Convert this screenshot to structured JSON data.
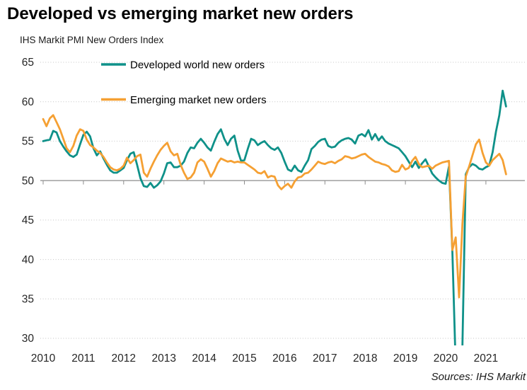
{
  "title": "Developed vs emerging market new orders",
  "subtitle": "IHS Markit PMI New Orders Index",
  "source": "Sources: IHS Markit",
  "colors": {
    "developed": "#0f9189",
    "emerging": "#f5a033",
    "gridline": "#c4c4c4",
    "axis": "#8c8c8c",
    "text": "#262626"
  },
  "chart_data": {
    "type": "line",
    "title": "Developed vs emerging market new orders",
    "ylabel": "IHS Markit PMI New Orders Index",
    "ylim": [
      30,
      65
    ],
    "yticks": [
      65,
      60,
      55,
      50,
      45,
      40,
      35,
      30
    ],
    "baseline_value": 50,
    "grid": "dotted horizontal lines, solid line at 50 with year tick marks",
    "legend_position": "top-left-inside",
    "xticks_years": [
      2010,
      2011,
      2012,
      2013,
      2014,
      2015,
      2016,
      2017,
      2018,
      2019,
      2020,
      2021
    ],
    "frequency": "monthly",
    "x_start": "2010-01",
    "x_end": "2021-07",
    "note": "Developed series falls below chart floor (30) in April-June 2020 and is clipped",
    "series": [
      {
        "name": "Developed world new orders",
        "color": "#0f9189",
        "values": [
          55.0,
          55.1,
          55.2,
          56.3,
          56.1,
          55.0,
          54.3,
          53.7,
          53.2,
          53.0,
          53.3,
          54.6,
          55.8,
          56.2,
          55.6,
          54.1,
          53.2,
          53.7,
          52.8,
          52.0,
          51.3,
          51.0,
          51.0,
          51.3,
          51.6,
          52.6,
          53.4,
          53.6,
          52.0,
          50.3,
          49.3,
          49.2,
          49.7,
          49.1,
          49.4,
          49.9,
          50.9,
          52.2,
          52.3,
          51.7,
          51.7,
          51.9,
          52.4,
          53.5,
          54.2,
          54.1,
          54.8,
          55.3,
          54.8,
          54.2,
          53.8,
          54.9,
          55.9,
          56.5,
          55.3,
          54.5,
          55.3,
          55.7,
          53.8,
          52.5,
          52.6,
          54.0,
          55.3,
          55.1,
          54.5,
          54.8,
          55.0,
          54.5,
          54.1,
          53.9,
          54.2,
          53.5,
          52.4,
          51.4,
          51.2,
          51.9,
          51.3,
          51.1,
          51.9,
          52.6,
          54.0,
          54.4,
          54.9,
          55.2,
          55.3,
          54.4,
          54.2,
          54.3,
          54.8,
          55.1,
          55.3,
          55.4,
          55.2,
          54.7,
          55.7,
          55.9,
          55.6,
          56.4,
          55.2,
          55.9,
          55.1,
          55.6,
          55.0,
          54.7,
          54.5,
          54.3,
          54.1,
          53.6,
          53.1,
          52.4,
          51.7,
          52.4,
          51.6,
          52.2,
          52.7,
          51.8,
          50.9,
          50.4,
          50.0,
          49.7,
          49.6,
          51.8,
          41.0,
          26.5,
          27.0,
          29.0,
          50.8,
          51.7,
          52.1,
          51.9,
          51.5,
          51.4,
          51.7,
          51.9,
          53.6,
          56.2,
          58.3,
          61.4,
          59.4
        ]
      },
      {
        "name": "Emerging market new orders",
        "color": "#f5a033",
        "values": [
          57.8,
          56.9,
          57.9,
          58.3,
          57.4,
          56.5,
          55.3,
          54.1,
          53.6,
          54.4,
          55.7,
          56.5,
          56.3,
          55.2,
          54.5,
          54.2,
          53.8,
          53.5,
          53.0,
          52.3,
          51.7,
          51.4,
          51.3,
          51.5,
          51.9,
          52.9,
          52.2,
          52.6,
          53.1,
          53.3,
          51.0,
          50.5,
          51.5,
          52.4,
          53.2,
          53.9,
          54.4,
          54.8,
          53.7,
          53.2,
          53.4,
          52.0,
          51.0,
          50.2,
          50.4,
          51.0,
          52.3,
          52.7,
          52.4,
          51.5,
          50.5,
          51.2,
          52.2,
          52.8,
          52.6,
          52.4,
          52.5,
          52.3,
          52.4,
          52.3,
          52.3,
          52.0,
          51.7,
          51.4,
          51.0,
          50.9,
          51.2,
          50.4,
          50.6,
          50.5,
          49.4,
          48.9,
          49.3,
          49.6,
          49.1,
          49.9,
          50.4,
          50.5,
          50.9,
          51.0,
          51.4,
          51.9,
          52.4,
          52.2,
          52.1,
          52.3,
          52.4,
          52.2,
          52.5,
          52.7,
          53.1,
          53.0,
          52.8,
          52.9,
          53.1,
          53.3,
          53.4,
          53.0,
          52.7,
          52.4,
          52.3,
          52.1,
          52.0,
          51.8,
          51.3,
          51.1,
          51.2,
          52.0,
          51.4,
          51.6,
          52.5,
          53.0,
          52.1,
          51.7,
          51.8,
          51.9,
          51.5,
          51.9,
          52.1,
          52.3,
          52.4,
          52.5,
          41.2,
          42.8,
          35.2,
          44.5,
          50.5,
          51.8,
          53.2,
          54.6,
          55.2,
          53.5,
          52.3,
          51.9,
          52.6,
          53.0,
          53.4,
          52.6,
          50.8
        ]
      }
    ]
  }
}
